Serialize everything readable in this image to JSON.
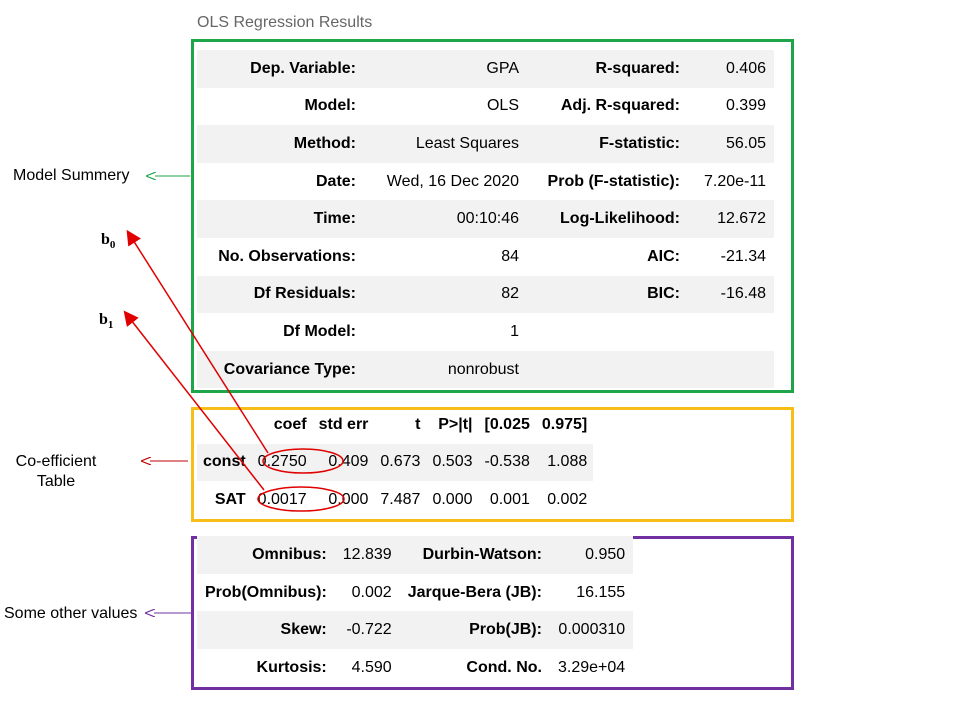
{
  "caption": "OLS Regression Results",
  "summary": {
    "rows": [
      {
        "l1": "Dep. Variable:",
        "v1": "GPA",
        "l2": "R-squared:",
        "v2": "0.406"
      },
      {
        "l1": "Model:",
        "v1": "OLS",
        "l2": "Adj. R-squared:",
        "v2": "0.399"
      },
      {
        "l1": "Method:",
        "v1": "Least Squares",
        "l2": "F-statistic:",
        "v2": "56.05"
      },
      {
        "l1": "Date:",
        "v1": "Wed, 16 Dec 2020",
        "l2": "Prob (F-statistic):",
        "v2": "7.20e-11"
      },
      {
        "l1": "Time:",
        "v1": "00:10:46",
        "l2": "Log-Likelihood:",
        "v2": "12.672"
      },
      {
        "l1": "No. Observations:",
        "v1": "84",
        "l2": "AIC:",
        "v2": "-21.34"
      },
      {
        "l1": "Df Residuals:",
        "v1": "82",
        "l2": "BIC:",
        "v2": "-16.48"
      },
      {
        "l1": "Df Model:",
        "v1": "1",
        "l2": "",
        "v2": ""
      },
      {
        "l1": "Covariance Type:",
        "v1": "nonrobust",
        "l2": "",
        "v2": ""
      }
    ]
  },
  "coef": {
    "headers": [
      "",
      "coef",
      "std err",
      "t",
      "P>|t|",
      "[0.025",
      "0.975]"
    ],
    "rows": [
      [
        "const",
        "0.2750",
        "0.409",
        "0.673",
        "0.503",
        "-0.538",
        "1.088"
      ],
      [
        "SAT",
        "0.0017",
        "0.000",
        "7.487",
        "0.000",
        "0.001",
        "0.002"
      ]
    ]
  },
  "other": {
    "rows": [
      {
        "l1": "Omnibus:",
        "v1": "12.839",
        "l2": "Durbin-Watson:",
        "v2": "0.950"
      },
      {
        "l1": "Prob(Omnibus):",
        "v1": "0.002",
        "l2": "Jarque-Bera (JB):",
        "v2": "16.155"
      },
      {
        "l1": "Skew:",
        "v1": "-0.722",
        "l2": "Prob(JB):",
        "v2": "0.000310"
      },
      {
        "l1": "Kurtosis:",
        "v1": "4.590",
        "l2": "Cond. No.",
        "v2": "3.29e+04"
      }
    ]
  },
  "annotations": {
    "model_summary": "Model Summery",
    "coefficient_line1": "Co-efficient",
    "coefficient_line2": "Table",
    "other_values": "Some other values",
    "b0": "b",
    "b0_sub": "0",
    "b1": "b",
    "b1_sub": "1"
  },
  "colors": {
    "model_box": "#1ea54a",
    "coef_box": "#f6be16",
    "other_box": "#7030a0",
    "highlight": "#e00000"
  }
}
